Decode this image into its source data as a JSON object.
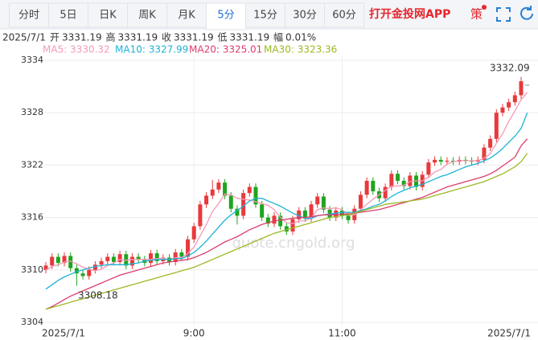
{
  "tabs": {
    "items": [
      "分时",
      "5日",
      "日K",
      "周K",
      "月K",
      "5分",
      "15分",
      "30分",
      "60分"
    ],
    "selected": 5
  },
  "app_link": "打开金投网APP",
  "strategy": "策",
  "info": {
    "date": "2025/7/1",
    "fields": [
      {
        "label": "开",
        "value": "3331.19"
      },
      {
        "label": "高",
        "value": "3331.19"
      },
      {
        "label": "收",
        "value": "3331.19"
      },
      {
        "label": "低",
        "value": "3331.19"
      },
      {
        "label": "幅",
        "value": "0.01%"
      }
    ]
  },
  "chart_data": {
    "type": "candlestick",
    "categories": [
      "2025/7/1",
      null,
      null,
      null,
      null,
      null,
      null,
      null,
      null,
      null,
      null,
      null,
      null,
      null,
      null,
      null,
      null,
      null,
      null,
      null,
      null,
      null,
      null,
      null,
      "9:00",
      null,
      null,
      null,
      null,
      null,
      null,
      null,
      null,
      null,
      null,
      null,
      null,
      null,
      null,
      null,
      null,
      null,
      null,
      null,
      null,
      null,
      null,
      null,
      "11:00",
      null,
      null,
      null,
      null,
      null,
      null,
      null,
      null,
      null,
      null,
      null,
      null,
      null,
      null,
      null,
      null,
      null,
      null,
      null,
      null,
      null,
      null,
      null,
      null,
      null,
      null,
      null,
      null,
      null,
      "2025/7/1"
    ],
    "open": [
      3310.0,
      3310.5,
      3311.5,
      3310.8,
      3311.6,
      3310.2,
      3309.6,
      3309.3,
      3310.0,
      3310.6,
      3311.0,
      3311.5,
      3310.9,
      3311.8,
      3310.5,
      3311.5,
      3311.2,
      3310.8,
      3311.9,
      3311.0,
      3311.4,
      3310.9,
      3312.0,
      3311.5,
      3313.5,
      3315.0,
      3317.5,
      3318.5,
      3319.2,
      3320.0,
      3318.5,
      3317.0,
      3316.2,
      3318.8,
      3319.5,
      3317.5,
      3316.0,
      3315.3,
      3316.2,
      3315.0,
      3314.4,
      3315.8,
      3316.8,
      3315.9,
      3317.5,
      3318.4,
      3316.9,
      3316.0,
      3316.8,
      3316.2,
      3315.7,
      3317.0,
      3318.6,
      3320.2,
      3319.0,
      3318.2,
      3319.5,
      3321.0,
      3320.2,
      3319.6,
      3320.8,
      3319.5,
      3320.9,
      3322.3,
      3322.6,
      3322.4,
      3322.5,
      3322.4,
      3322.6,
      3322.5,
      3322.4,
      3322.6,
      3324.0,
      3325.0,
      3328.0,
      3328.6,
      3329.2,
      3330.0,
      3331.19
    ],
    "high": [
      3310.9,
      3311.9,
      3311.9,
      3312.0,
      3312.0,
      3310.6,
      3310.0,
      3310.4,
      3311.0,
      3311.4,
      3311.9,
      3311.9,
      3312.2,
      3312.2,
      3311.9,
      3311.9,
      3311.6,
      3312.3,
      3312.3,
      3311.8,
      3311.8,
      3312.4,
      3312.4,
      3313.9,
      3315.4,
      3317.9,
      3318.9,
      3320.3,
      3320.4,
      3320.4,
      3318.9,
      3317.4,
      3319.2,
      3319.9,
      3319.9,
      3317.9,
      3316.4,
      3316.6,
      3316.6,
      3315.4,
      3316.2,
      3317.2,
      3317.2,
      3317.9,
      3318.8,
      3318.8,
      3317.3,
      3317.2,
      3317.2,
      3316.6,
      3317.4,
      3319.0,
      3320.6,
      3320.6,
      3319.4,
      3319.9,
      3321.4,
      3321.4,
      3320.6,
      3321.2,
      3321.2,
      3321.3,
      3322.7,
      3323.0,
      3323.0,
      3322.9,
      3322.9,
      3323.0,
      3323.0,
      3322.9,
      3323.0,
      3324.4,
      3325.4,
      3328.4,
      3329.0,
      3329.6,
      3330.4,
      3332.09,
      3331.19
    ],
    "low": [
      3309.6,
      3310.1,
      3310.4,
      3310.4,
      3309.8,
      3308.18,
      3308.9,
      3308.9,
      3309.6,
      3310.2,
      3310.6,
      3310.5,
      3310.5,
      3310.1,
      3310.1,
      3310.8,
      3310.4,
      3310.4,
      3310.6,
      3310.6,
      3310.5,
      3310.5,
      3311.1,
      3311.1,
      3313.1,
      3314.6,
      3317.1,
      3318.1,
      3318.8,
      3318.1,
      3316.6,
      3315.2,
      3315.8,
      3318.4,
      3317.1,
      3315.6,
      3314.9,
      3314.9,
      3314.6,
      3314.0,
      3314.0,
      3315.4,
      3315.5,
      3315.5,
      3317.1,
      3316.5,
      3315.6,
      3315.6,
      3315.8,
      3315.3,
      3315.3,
      3316.6,
      3318.2,
      3318.6,
      3317.8,
      3317.8,
      3319.1,
      3319.8,
      3319.2,
      3319.2,
      3319.1,
      3319.1,
      3320.5,
      3321.9,
      3322.0,
      3322.0,
      3322.0,
      3322.0,
      3322.1,
      3322.0,
      3322.0,
      3322.2,
      3323.6,
      3324.6,
      3327.6,
      3328.2,
      3328.8,
      3329.6,
      3331.19
    ],
    "close": [
      3310.5,
      3311.5,
      3310.8,
      3311.6,
      3310.2,
      3309.6,
      3309.3,
      3310.0,
      3310.6,
      3311.0,
      3311.5,
      3310.9,
      3311.8,
      3310.5,
      3311.5,
      3311.2,
      3310.8,
      3311.9,
      3311.0,
      3311.4,
      3310.9,
      3312.0,
      3311.5,
      3313.5,
      3315.0,
      3317.5,
      3318.5,
      3319.2,
      3320.0,
      3318.5,
      3317.0,
      3316.2,
      3318.8,
      3319.5,
      3317.5,
      3316.0,
      3315.3,
      3316.2,
      3315.0,
      3314.4,
      3315.8,
      3316.8,
      3315.9,
      3317.5,
      3318.4,
      3316.9,
      3316.0,
      3316.8,
      3316.2,
      3315.7,
      3317.0,
      3318.6,
      3320.2,
      3319.0,
      3318.2,
      3319.5,
      3321.0,
      3320.2,
      3319.6,
      3320.8,
      3319.5,
      3320.9,
      3322.3,
      3322.6,
      3322.4,
      3322.5,
      3322.4,
      3322.6,
      3322.5,
      3322.4,
      3322.6,
      3324.0,
      3325.0,
      3328.0,
      3328.6,
      3329.2,
      3330.0,
      3331.6,
      3331.19
    ],
    "up_color": "#e8393c",
    "down_color": "#1fa51f",
    "series": [
      {
        "name": "MA5: 3330.32",
        "color": "#f49ab6",
        "values": [
          3310.0,
          3310.4,
          3310.6,
          3310.9,
          3311.0,
          3310.7,
          3310.3,
          3310.1,
          3309.9,
          3310.1,
          3310.5,
          3310.8,
          3311.2,
          3311.1,
          3311.2,
          3311.2,
          3311.2,
          3311.2,
          3311.3,
          3311.3,
          3311.2,
          3311.4,
          3311.4,
          3311.9,
          3312.6,
          3313.9,
          3315.2,
          3316.7,
          3317.6,
          3318.7,
          3318.6,
          3318.2,
          3318.1,
          3318.0,
          3317.8,
          3317.6,
          3317.4,
          3316.9,
          3316.0,
          3315.4,
          3315.3,
          3315.6,
          3315.6,
          3316.0,
          3316.9,
          3317.1,
          3317.0,
          3317.1,
          3316.9,
          3316.3,
          3316.3,
          3316.9,
          3317.5,
          3318.1,
          3318.6,
          3319.1,
          3319.6,
          3319.6,
          3319.7,
          3320.1,
          3320.2,
          3320.2,
          3320.6,
          3321.2,
          3321.5,
          3322.1,
          3322.4,
          3322.5,
          3322.5,
          3322.5,
          3322.5,
          3322.8,
          3323.3,
          3324.5,
          3325.6,
          3327.0,
          3328.2,
          3329.5,
          3330.32
        ]
      },
      {
        "name": "MA10: 3327.99",
        "color": "#1fb3d6",
        "values": [
          3307.8,
          3308.3,
          3308.8,
          3309.2,
          3309.5,
          3309.8,
          3310.0,
          3310.2,
          3310.4,
          3310.5,
          3310.6,
          3310.6,
          3310.6,
          3310.6,
          3310.7,
          3310.8,
          3311.0,
          3311.1,
          3311.2,
          3311.2,
          3311.2,
          3311.3,
          3311.3,
          3311.6,
          3312.0,
          3312.6,
          3313.3,
          3314.1,
          3314.9,
          3315.7,
          3316.3,
          3316.8,
          3317.3,
          3317.9,
          3318.2,
          3318.2,
          3317.9,
          3317.6,
          3317.3,
          3316.9,
          3316.5,
          3316.2,
          3315.9,
          3315.9,
          3316.2,
          3316.3,
          3316.4,
          3316.5,
          3316.6,
          3316.6,
          3316.6,
          3316.8,
          3317.0,
          3317.3,
          3317.5,
          3317.9,
          3318.4,
          3318.8,
          3319.1,
          3319.4,
          3319.6,
          3319.8,
          3320.1,
          3320.4,
          3320.7,
          3320.9,
          3321.2,
          3321.5,
          3321.8,
          3322.0,
          3322.2,
          3322.5,
          3322.8,
          3323.3,
          3323.9,
          3324.6,
          3325.3,
          3326.2,
          3327.99
        ]
      },
      {
        "name": "MA20: 3325.01",
        "color": "#dc3d6b",
        "values": [
          3305.5,
          3305.8,
          3306.2,
          3306.6,
          3307.0,
          3307.3,
          3307.6,
          3307.9,
          3308.2,
          3308.5,
          3308.8,
          3309.1,
          3309.4,
          3309.6,
          3309.8,
          3310.0,
          3310.2,
          3310.4,
          3310.6,
          3310.8,
          3310.9,
          3311.0,
          3311.1,
          3311.2,
          3311.4,
          3311.7,
          3312.0,
          3312.4,
          3312.8,
          3313.2,
          3313.5,
          3313.8,
          3314.2,
          3314.6,
          3314.9,
          3315.2,
          3315.4,
          3315.6,
          3315.7,
          3315.8,
          3315.9,
          3316.0,
          3316.0,
          3316.1,
          3316.2,
          3316.3,
          3316.3,
          3316.3,
          3316.4,
          3316.4,
          3316.5,
          3316.6,
          3316.7,
          3316.8,
          3316.9,
          3317.1,
          3317.3,
          3317.5,
          3317.7,
          3317.9,
          3318.1,
          3318.3,
          3318.6,
          3318.9,
          3319.2,
          3319.5,
          3319.7,
          3319.9,
          3320.1,
          3320.3,
          3320.5,
          3320.7,
          3321.0,
          3321.4,
          3321.9,
          3322.4,
          3322.9,
          3324.2,
          3325.01
        ]
      },
      {
        "name": "MA30: 3323.36",
        "color": "#9cb824",
        "values": [
          3305.5,
          3305.7,
          3305.9,
          3306.1,
          3306.3,
          3306.5,
          3306.7,
          3306.9,
          3307.1,
          3307.3,
          3307.5,
          3307.7,
          3307.9,
          3308.1,
          3308.3,
          3308.5,
          3308.7,
          3308.9,
          3309.1,
          3309.3,
          3309.5,
          3309.7,
          3309.9,
          3310.1,
          3310.3,
          3310.6,
          3310.9,
          3311.2,
          3311.5,
          3311.8,
          3312.1,
          3312.4,
          3312.7,
          3313.0,
          3313.3,
          3313.6,
          3313.9,
          3314.2,
          3314.4,
          3314.6,
          3314.8,
          3315.0,
          3315.2,
          3315.4,
          3315.6,
          3315.8,
          3316.0,
          3316.1,
          3316.2,
          3316.3,
          3316.5,
          3316.7,
          3316.9,
          3317.1,
          3317.3,
          3317.5,
          3317.6,
          3317.7,
          3317.8,
          3317.9,
          3318.0,
          3318.1,
          3318.3,
          3318.5,
          3318.7,
          3318.9,
          3319.1,
          3319.3,
          3319.5,
          3319.7,
          3319.9,
          3320.1,
          3320.4,
          3320.7,
          3321.0,
          3321.4,
          3321.8,
          3322.4,
          3323.36
        ]
      }
    ],
    "ylim": [
      3304,
      3334
    ],
    "yticks": [
      3334,
      3328,
      3322,
      3316,
      3310,
      3304
    ],
    "grid": true,
    "annotations": [
      3332.09,
      3308.18
    ],
    "watermark": "quote.cngold.org"
  }
}
